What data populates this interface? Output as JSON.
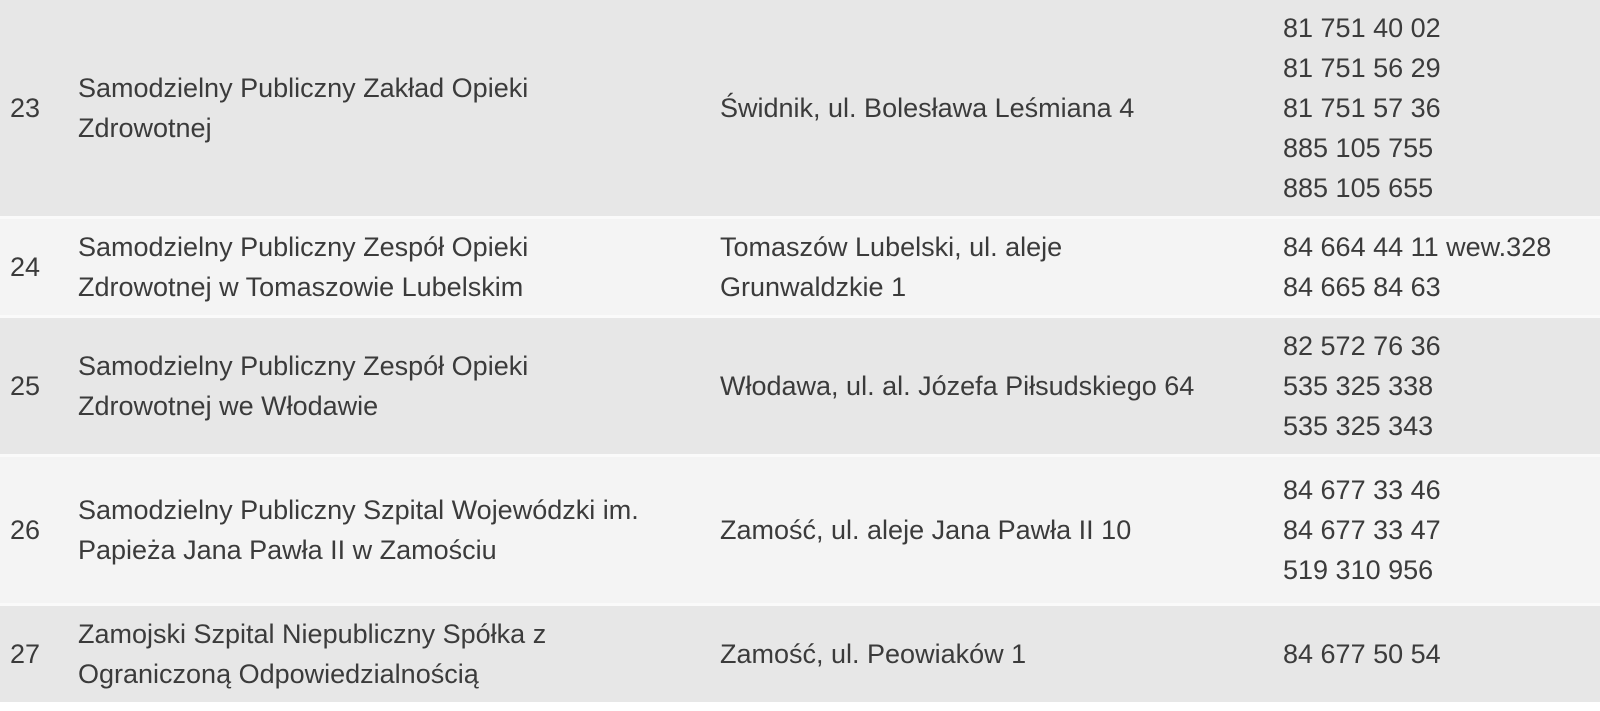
{
  "colors": {
    "row_even": "#e7e7e7",
    "row_odd": "#f4f4f4",
    "separator": "#fafafa",
    "text": "#3b3b3b",
    "page_bg": "#ffffff"
  },
  "table": {
    "rows": [
      {
        "no": "23",
        "name": "Samodzielny Publiczny Zakład Opieki Zdrowotnej",
        "address": "Świdnik, ul. Bolesława Leśmiana 4",
        "phones": [
          "81 751 40 02",
          "81 751 56 29",
          "81 751 57 36",
          "885 105 755",
          "885 105 655"
        ]
      },
      {
        "no": "24",
        "name": "Samodzielny Publiczny Zespół Opieki Zdrowotnej w Tomaszowie Lubelskim",
        "address": "Tomaszów Lubelski, ul. aleje Grunwaldzkie 1",
        "phones": [
          "84 664 44 11 wew.328",
          "84 665 84 63"
        ]
      },
      {
        "no": "25",
        "name": "Samodzielny Publiczny Zespół Opieki Zdrowotnej we Włodawie",
        "address": "Włodawa, ul. al. Józefa Piłsudskiego 64",
        "phones": [
          "82 572 76 36",
          "535 325 338",
          "535 325 343"
        ]
      },
      {
        "no": "26",
        "name": "Samodzielny Publiczny Szpital Wojewódzki im. Papieża Jana Pawła II w Zamościu",
        "address": "Zamość, ul. aleje Jana Pawła II 10",
        "phones": [
          "84 677 33 46",
          "84 677 33 47",
          "519 310 956"
        ]
      },
      {
        "no": "27",
        "name": "Zamojski Szpital Niepubliczny Spółka z Ograniczoną Odpowiedzialnością",
        "address": "Zamość, ul. Peowiaków 1",
        "phones": [
          "84 677 50 54"
        ]
      }
    ]
  }
}
